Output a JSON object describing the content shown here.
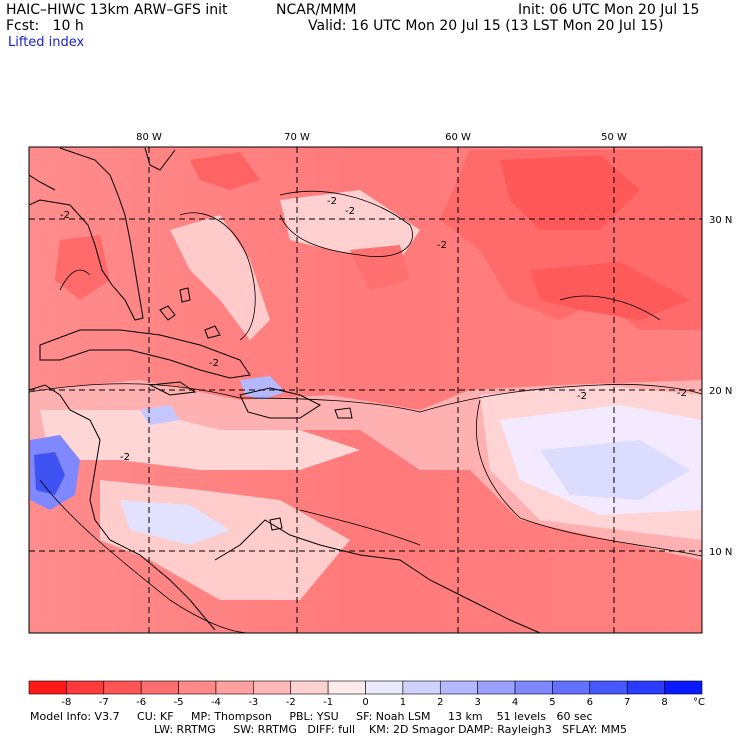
{
  "header": {
    "model": "HAIC–HIWC 13km ARW–GFS init",
    "org": "NCAR/MMM",
    "init": "Init: 06 UTC Mon 20 Jul 15",
    "fcst": "Fcst:   10 h",
    "valid": "Valid: 16 UTC Mon 20 Jul 15 (13 LST Mon 20 Jul 15)",
    "field": "Lifted index"
  },
  "map": {
    "lon_labels": [
      "80 W",
      "70 W",
      "60 W",
      "50 W"
    ],
    "lat_labels": [
      "30 N",
      "20 N",
      "10 N"
    ],
    "contour_labels": [
      "-2",
      "-2",
      "-2",
      "-2",
      "-2",
      "-2",
      "-2",
      "-2"
    ]
  },
  "colorbar": {
    "ticks": [
      "-8",
      "-7",
      "-6",
      "-5",
      "-4",
      "-3",
      "-2",
      "-1",
      "0",
      "1",
      "2",
      "3",
      "4",
      "5",
      "6",
      "7",
      "8"
    ],
    "unit": "°C",
    "colors": [
      "#ff1a1a",
      "#ff3a3a",
      "#ff5555",
      "#ff6e6e",
      "#ff8888",
      "#ffa0a0",
      "#ffb8b8",
      "#ffd2d2",
      "#ffeaea",
      "#eaeaff",
      "#cfd2ff",
      "#b4b8ff",
      "#9aa0ff",
      "#7f88ff",
      "#6470ff",
      "#4658ff",
      "#2a3cff",
      "#0a1aff"
    ]
  },
  "footer": {
    "line1": "Model Info: V3.7     CU: KF     MP: Thompson     PBL: YSU     SF: Noah LSM     13 km    51 levels   60 sec",
    "line2": "LW: RRTMG     SW: RRTMG   DIFF: full    KM: 2D Smagor DAMP: Rayleigh3   SFLAY: MM5"
  }
}
